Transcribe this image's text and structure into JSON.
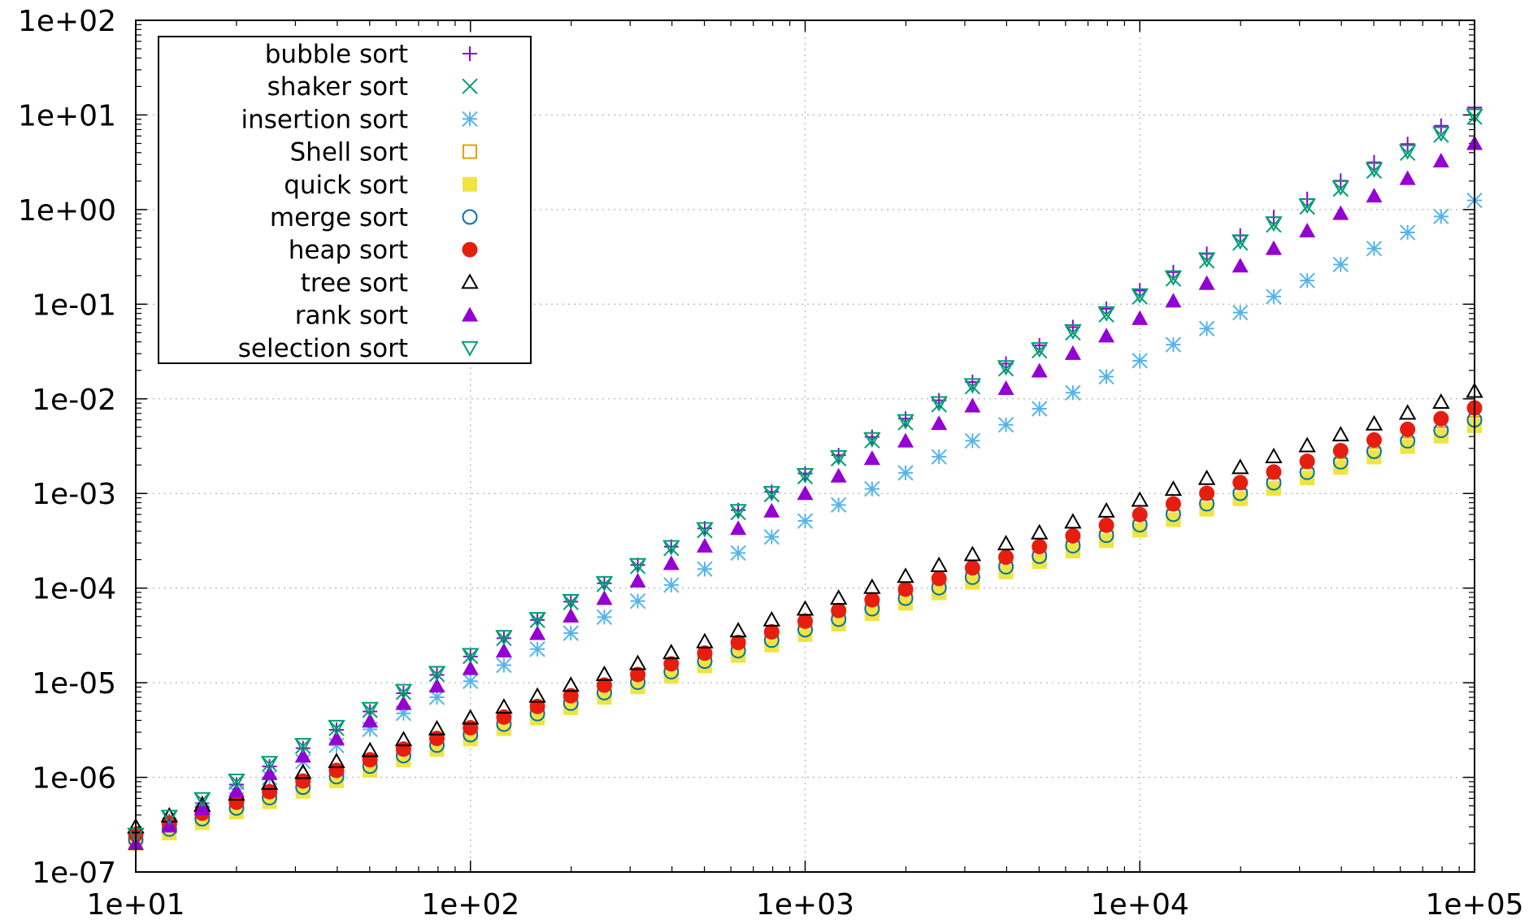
{
  "chart_data": {
    "type": "scatter",
    "title": "",
    "xlabel": "",
    "ylabel": "",
    "x_scale": "log",
    "y_scale": "log",
    "xlim": [
      10,
      100000
    ],
    "ylim": [
      1e-07,
      100
    ],
    "grid": true,
    "legend_position": "top-left",
    "x_tick_labels": [
      "1e+01",
      "1e+02",
      "1e+03",
      "1e+04",
      "1e+05"
    ],
    "y_tick_labels": [
      "1e-07",
      "1e-06",
      "1e-05",
      "1e-04",
      "1e-03",
      "1e-02",
      "1e-01",
      "1e+00",
      "1e+01",
      "1e+02"
    ],
    "x": [
      10,
      12.6,
      15.8,
      20,
      25.1,
      31.6,
      39.8,
      50.1,
      63.1,
      79.4,
      100,
      125.9,
      158.5,
      199.5,
      251.2,
      316.2,
      398.1,
      501.2,
      631,
      794.3,
      1000,
      1258.9,
      1584.9,
      1995.3,
      2511.9,
      3162.3,
      3981.1,
      5011.9,
      6309.6,
      7943.3,
      10000,
      12589.3,
      15848.9,
      19952.6,
      25118.9,
      31622.8,
      39810.7,
      50118.7,
      63095.7,
      79432.8,
      100000
    ],
    "series": [
      {
        "name": "bubble sort",
        "marker": "plus",
        "color": "#9400d3",
        "y0": 2.2e-07,
        "y_end": 12
      },
      {
        "name": "shaker sort",
        "marker": "cross",
        "color": "#009e73",
        "y0": 2.4e-07,
        "y_end": 9.5
      },
      {
        "name": "insertion sort",
        "marker": "star",
        "color": "#56b4e9",
        "y0": 2.1e-07,
        "y_end": 1.25
      },
      {
        "name": "Shell sort",
        "marker": "square-open",
        "color": "#e69f00",
        "y0": 2.3e-07,
        "y_end": 0.0055
      },
      {
        "name": "quick sort",
        "marker": "square-filled",
        "color": "#f0e442",
        "y0": 2e-07,
        "y_end": 0.0052
      },
      {
        "name": "merge sort",
        "marker": "circle-open",
        "color": "#0072b2",
        "y0": 2.2e-07,
        "y_end": 0.006
      },
      {
        "name": "heap sort",
        "marker": "circle-filled",
        "color": "#e51e10",
        "y0": 2.5e-07,
        "y_end": 0.008
      },
      {
        "name": "tree sort",
        "marker": "triangle-open",
        "color": "#000000",
        "y0": 3e-07,
        "y_end": 0.012
      },
      {
        "name": "rank sort",
        "marker": "triangle-filled",
        "color": "#9400d3",
        "y0": 2e-07,
        "y_end": 5.0
      },
      {
        "name": "selection sort",
        "marker": "triangle-down-open",
        "color": "#009e73",
        "y0": 2.5e-07,
        "y_end": 10
      }
    ]
  }
}
